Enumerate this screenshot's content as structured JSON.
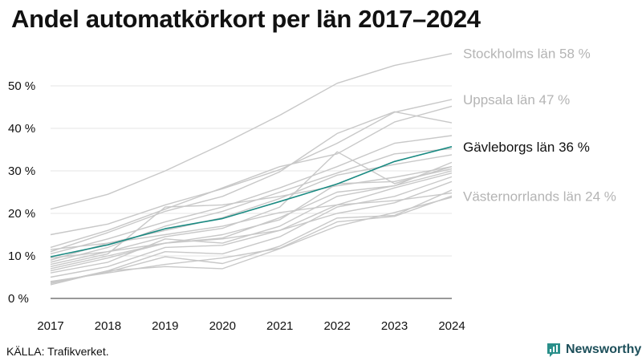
{
  "title": "Andel automatkörkort per län 2017–2024",
  "source": "KÄLLA: Trafikverket.",
  "brand": "Newsworthy",
  "chart_data": {
    "type": "line",
    "x": [
      2017,
      2018,
      2019,
      2020,
      2021,
      2022,
      2023,
      2024
    ],
    "xlabels": [
      "2017",
      "2018",
      "2019",
      "2020",
      "2021",
      "2022",
      "2023",
      "2024"
    ],
    "ylim": [
      0,
      60
    ],
    "yticks": [
      0,
      10,
      20,
      30,
      40,
      50
    ],
    "ytick_labels": [
      "0 %",
      "10 %",
      "20 %",
      "30 %",
      "40 %",
      "50 %"
    ],
    "grid": "horizontal",
    "colors": {
      "highlight": "#1a8a82",
      "background": "#c8c8c8",
      "label_grey": "#b4b4b4",
      "label_dark": "#111111",
      "grid": "#e6e6e6"
    },
    "series": [
      {
        "name": "Stockholms län",
        "label": "Stockholms län 58 %",
        "emphasis": "labelled",
        "values": [
          21,
          24.5,
          30,
          36.3,
          43.1,
          50.6,
          54.8,
          57.6
        ]
      },
      {
        "name": "Uppsala län",
        "label": "Uppsala län 47 %",
        "emphasis": "labelled",
        "values": [
          15,
          17.5,
          22,
          25.8,
          30.3,
          36.5,
          43.8,
          46.8
        ]
      },
      {
        "name": "Gävleborgs län",
        "label": "Gävleborgs län 36 %",
        "emphasis": "highlight",
        "values": [
          9.8,
          12.6,
          16.4,
          18.8,
          22.8,
          26.9,
          32.2,
          35.7
        ]
      },
      {
        "name": "Västernorrlands län",
        "label": "Västernorrlands län 24 %",
        "emphasis": "labelled",
        "values": [
          4,
          6,
          8,
          9.5,
          11.8,
          18,
          19.3,
          24.1
        ]
      },
      {
        "values": [
          12,
          16,
          21,
          26,
          31,
          34,
          41.5,
          45.2
        ]
      },
      {
        "values": [
          11,
          15.5,
          20.5,
          24,
          29.8,
          38.8,
          43.9,
          41.3
        ]
      },
      {
        "values": [
          10.5,
          14,
          18,
          21.5,
          26,
          31,
          36.5,
          38.3
        ]
      },
      {
        "values": [
          8.5,
          12,
          17,
          20.5,
          25,
          29.5,
          34,
          35.2
        ]
      },
      {
        "values": [
          9,
          13,
          16,
          19,
          23.5,
          29,
          31.5,
          33.8
        ]
      },
      {
        "values": [
          8,
          11,
          14.5,
          16.5,
          21.5,
          34.5,
          27,
          31
        ]
      },
      {
        "values": [
          7,
          10,
          13,
          15,
          18.5,
          27,
          27.5,
          30.5
        ]
      },
      {
        "values": [
          6,
          8.5,
          14,
          13,
          17,
          24,
          26.5,
          30
        ]
      },
      {
        "values": [
          5,
          7.5,
          12,
          12.5,
          16,
          22,
          26,
          29.5
        ]
      },
      {
        "values": [
          3.5,
          6.5,
          11,
          10.5,
          14.5,
          21.5,
          24,
          28.6
        ]
      },
      {
        "values": [
          3.8,
          6.2,
          9.8,
          8.2,
          12.3,
          18.9,
          19.5,
          25.5
        ]
      },
      {
        "values": [
          3.2,
          6.5,
          7.5,
          7,
          11.7,
          17,
          20.2,
          23.8
        ]
      },
      {
        "values": [
          7.5,
          10.5,
          21.5,
          22,
          24,
          26.5,
          28.5,
          31
        ]
      },
      {
        "values": [
          6.5,
          9.5,
          13,
          14.2,
          19,
          25,
          26.5,
          32
        ]
      },
      {
        "values": [
          11.5,
          13,
          15,
          17,
          20.2,
          22,
          23,
          24.8
        ]
      },
      {
        "values": [
          9.5,
          11,
          13,
          14,
          16,
          20,
          22.5,
          27.5
        ]
      }
    ]
  }
}
